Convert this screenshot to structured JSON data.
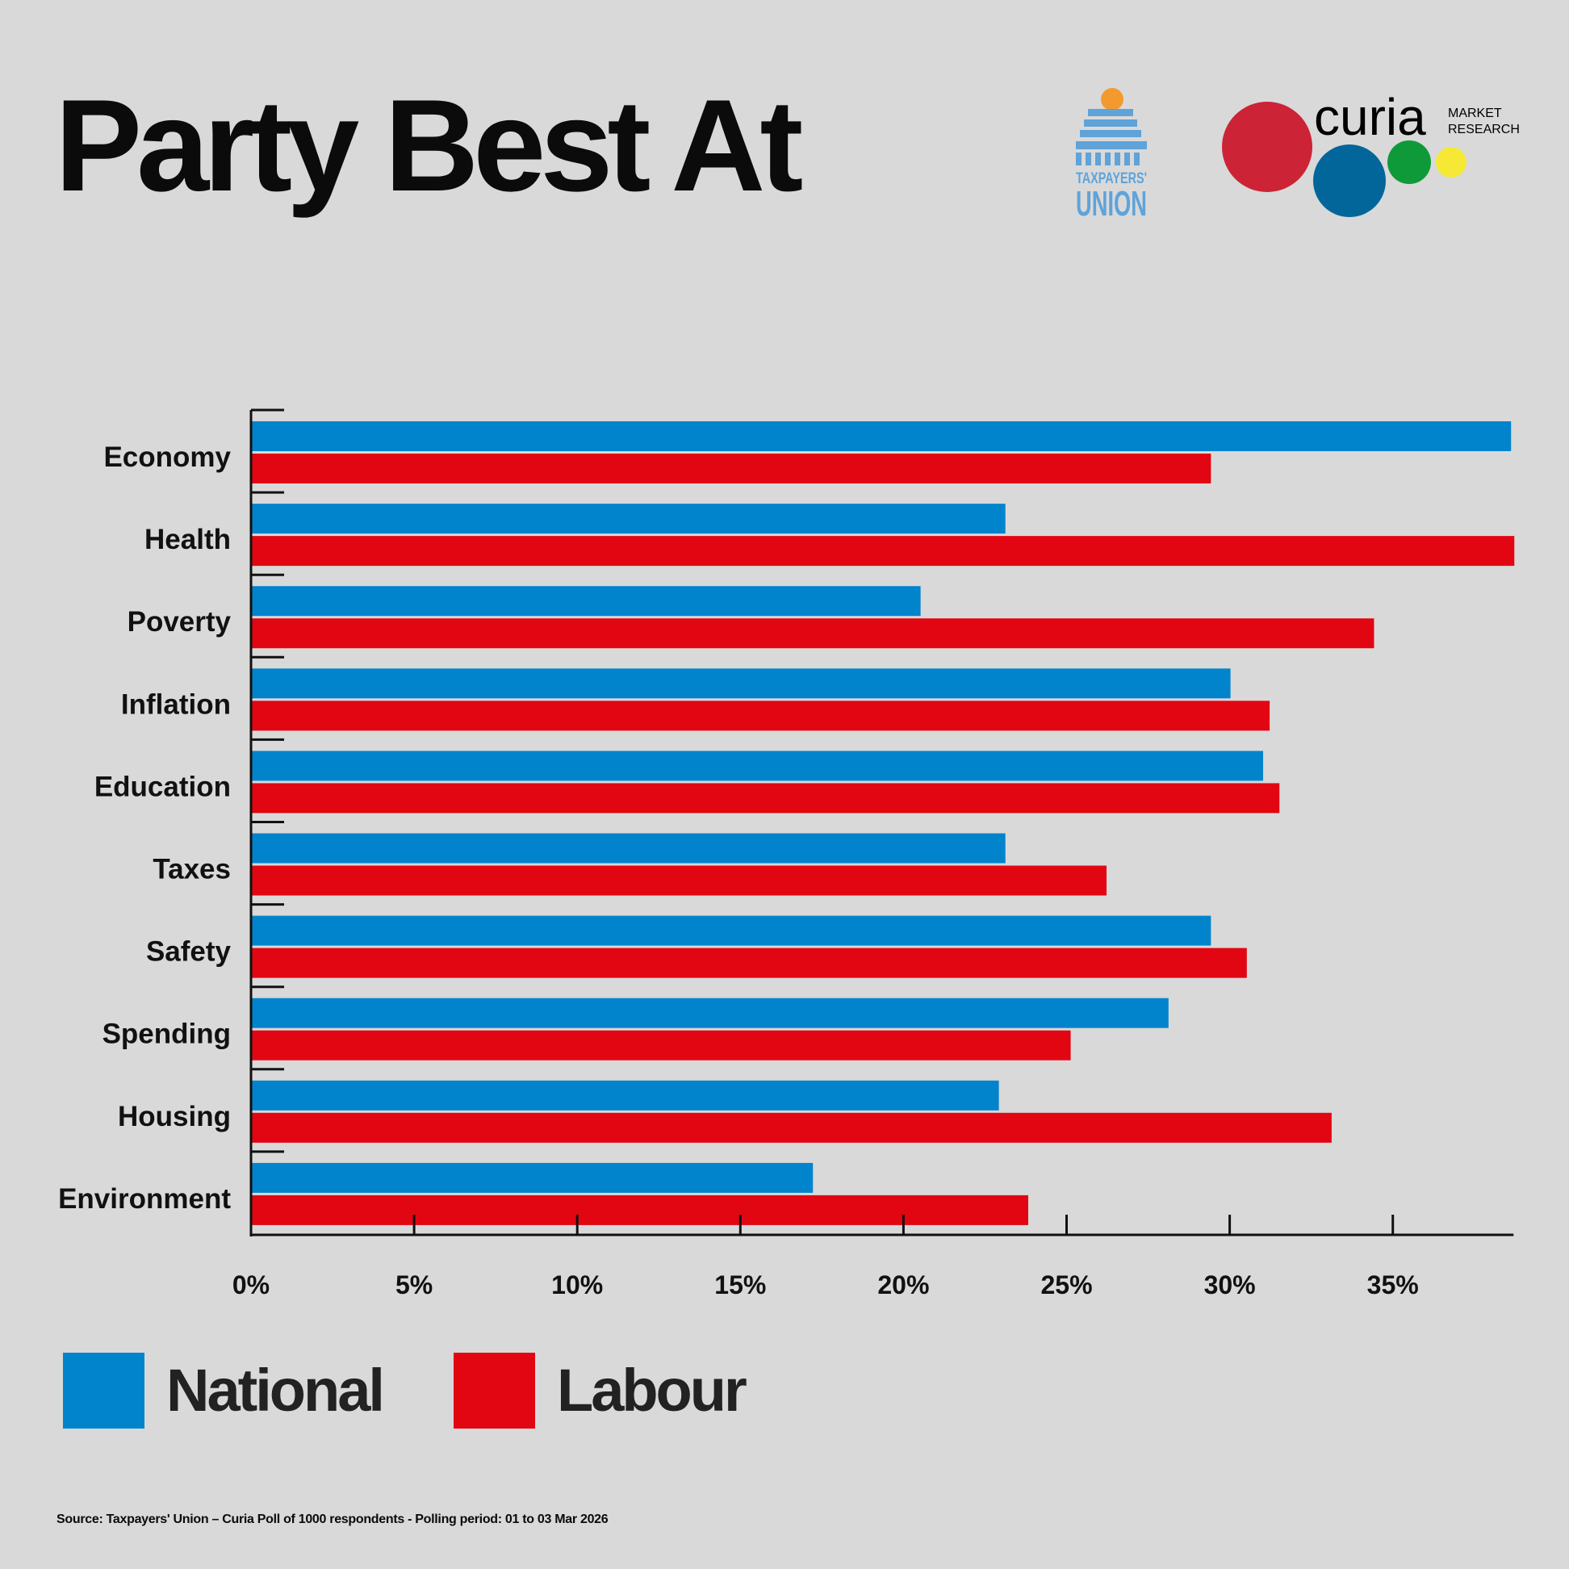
{
  "title": "Party Best At",
  "logos": {
    "taxpayers_union": {
      "line1": "TAXPAYERS'",
      "line2": "UNION"
    },
    "curia": {
      "name": "curia",
      "line1": "MARKET",
      "line2": "RESEARCH"
    }
  },
  "colors": {
    "national": "#0284cd",
    "labour": "#e20613",
    "background": "#d9d9d9"
  },
  "chart_data": {
    "type": "bar",
    "orientation": "horizontal",
    "title": "Party Best At",
    "categories": [
      "Economy",
      "Health",
      "Poverty",
      "Inflation",
      "Education",
      "Taxes",
      "Safety",
      "Spending",
      "Housing",
      "Environment"
    ],
    "series": [
      {
        "name": "National",
        "color": "#0284cd",
        "values": [
          38.6,
          23.1,
          20.5,
          30.0,
          31.0,
          23.1,
          29.4,
          28.1,
          22.9,
          17.2
        ]
      },
      {
        "name": "Labour",
        "color": "#e20613",
        "values": [
          29.4,
          38.7,
          34.4,
          31.2,
          31.5,
          26.2,
          30.5,
          25.1,
          33.1,
          23.8
        ]
      }
    ],
    "xlim": [
      0,
      38.7
    ],
    "xticks": [
      0,
      5,
      10,
      15,
      20,
      25,
      30,
      35
    ],
    "xtick_labels": [
      "0%",
      "5%",
      "10%",
      "15%",
      "20%",
      "25%",
      "30%",
      "35%"
    ],
    "xlabel": "",
    "ylabel": "",
    "grid": false,
    "legend": [
      "National",
      "Labour"
    ],
    "legend_position": "bottom-left"
  },
  "source": "Source: Taxpayers' Union – Curia Poll of 1000 respondents - Polling period: 01 to 03 Mar 2026"
}
